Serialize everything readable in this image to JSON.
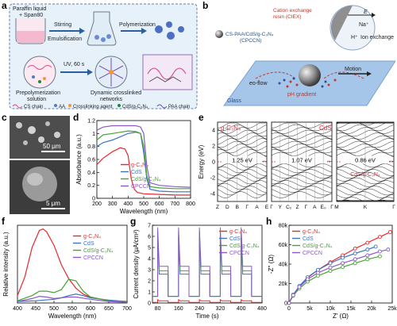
{
  "panel_letters": {
    "a": "a",
    "b": "b",
    "c": "c",
    "d": "d",
    "e": "e",
    "f": "f",
    "g": "g",
    "h": "h"
  },
  "panel_a": {
    "beaker_label_1": "Paraffin liquid",
    "beaker_label_2": "+ Span80",
    "step_1": "Stirring",
    "step_2": "Emulsification",
    "step_3": "Polymerization",
    "uv_label": "UV, 60 s",
    "prepoly_label_1": "Prepolymerization",
    "prepoly_label_2": "solution",
    "network_label_1": "Dynamic crosslinked",
    "network_label_2": "networks",
    "legend": [
      "CS chain",
      "AA",
      "Crosslinking agent",
      "CdS/g-C₃N₄",
      "PAA chain"
    ]
  },
  "panel_b": {
    "ciex_label_1": "Cation exchange",
    "ciex_label_2": "resin (CIEX)",
    "e_label": "E",
    "na_label": "Na⁺",
    "h_label": "H⁺",
    "ion_exchange": "Ion exchange",
    "particle_label_1": "CS-PAA/CdS/g-C₃N₄",
    "particle_label_2": "(CPCCN)",
    "eo_flow": "eo-flow",
    "ph_gradient": "pH gradient",
    "motion": "Motion",
    "glass": "Glass"
  },
  "panel_c": {
    "scale_top": "50 μm",
    "scale_bottom": "5 μm"
  },
  "panel_d": {
    "chart_data": {
      "type": "line",
      "xlabel": "Wavelength (nm)",
      "ylabel": "Absorbance (a.u.)",
      "xlim": [
        200,
        800
      ],
      "ylim": [
        0,
        1.2
      ],
      "xticks": [
        200,
        300,
        400,
        500,
        600,
        700,
        800
      ],
      "yticks": [
        0.0,
        0.2,
        0.4,
        0.6,
        0.8,
        1.0,
        1.2
      ],
      "series": [
        {
          "name": "g-C₃N₄",
          "color": "#e8282d",
          "x": [
            200,
            240,
            300,
            350,
            380,
            400,
            420,
            440,
            460,
            500,
            600,
            700,
            800
          ],
          "y": [
            0.52,
            0.62,
            0.72,
            0.78,
            0.76,
            0.66,
            0.3,
            0.14,
            0.09,
            0.07,
            0.06,
            0.05,
            0.05
          ]
        },
        {
          "name": "CdS",
          "color": "#3a74c5",
          "x": [
            200,
            240,
            300,
            350,
            400,
            450,
            480,
            500,
            520,
            540,
            600,
            700,
            800
          ],
          "y": [
            0.8,
            0.86,
            0.9,
            0.95,
            1.0,
            1.02,
            1.0,
            0.7,
            0.3,
            0.14,
            0.11,
            0.1,
            0.1
          ]
        },
        {
          "name": "CdS/g-C₃N₄",
          "color": "#44a535",
          "x": [
            200,
            240,
            300,
            350,
            400,
            450,
            480,
            500,
            520,
            540,
            600,
            700,
            800
          ],
          "y": [
            0.9,
            0.98,
            1.0,
            1.02,
            1.04,
            1.03,
            1.0,
            0.8,
            0.35,
            0.18,
            0.16,
            0.15,
            0.15
          ]
        },
        {
          "name": "CPCCN",
          "color": "#8b59c8",
          "x": [
            200,
            240,
            300,
            350,
            400,
            450,
            480,
            500,
            520,
            540,
            600,
            700,
            800
          ],
          "y": [
            1.05,
            1.1,
            1.12,
            1.12,
            1.12,
            1.12,
            1.1,
            1.0,
            0.5,
            0.24,
            0.2,
            0.18,
            0.17
          ]
        }
      ]
    }
  },
  "panel_e": {
    "ylabel": "Energy (eV)",
    "yticks": [
      "4",
      "2",
      "0",
      "-2",
      "-4"
    ],
    "gcn_title": "g-C₃N₄",
    "gcn_gap": "1.25 eV",
    "gcn_kpath": [
      "Z",
      "D",
      "B",
      "Γ",
      "A",
      "E"
    ],
    "cds_title": "CdS",
    "cds_gap": "1.07 eV",
    "cds_kpath": [
      "Γ",
      "Y",
      "C₂",
      "Z",
      "Γ",
      "A",
      "E₀",
      "Γ"
    ],
    "comp_title": "CdS/g-C₃N₄",
    "comp_gap": "0.86 eV",
    "comp_kpath": [
      "M",
      "K",
      "Γ"
    ]
  },
  "panel_f": {
    "chart_data": {
      "type": "line",
      "xlabel": "Wavelength (nm)",
      "ylabel": "Relative intensity (a.u.)",
      "xlim": [
        400,
        700
      ],
      "xticks": [
        400,
        450,
        500,
        550,
        600,
        650,
        700
      ],
      "series": [
        {
          "name": "g-C₃N₄",
          "color": "#e8282d",
          "x": [
            400,
            420,
            440,
            460,
            470,
            480,
            500,
            520,
            540,
            560,
            580,
            600,
            650,
            700
          ],
          "y": [
            0.1,
            0.35,
            0.75,
            0.98,
            1.0,
            0.96,
            0.78,
            0.52,
            0.33,
            0.2,
            0.12,
            0.08,
            0.03,
            0.02
          ]
        },
        {
          "name": "CdS",
          "color": "#3a74c5",
          "x": [
            400,
            450,
            500,
            520,
            540,
            560,
            580,
            600,
            650,
            700
          ],
          "y": [
            0.02,
            0.03,
            0.05,
            0.07,
            0.1,
            0.12,
            0.1,
            0.07,
            0.04,
            0.02
          ]
        },
        {
          "name": "CdS/g-C₃N₄",
          "color": "#44a535",
          "x": [
            400,
            440,
            460,
            480,
            500,
            520,
            540,
            560,
            580,
            600,
            650,
            700
          ],
          "y": [
            0.03,
            0.1,
            0.16,
            0.16,
            0.14,
            0.18,
            0.32,
            0.3,
            0.16,
            0.08,
            0.03,
            0.02
          ]
        },
        {
          "name": "CPCCN",
          "color": "#8b59c8",
          "x": [
            400,
            440,
            460,
            480,
            500,
            540,
            560,
            600,
            650,
            700
          ],
          "y": [
            0.02,
            0.06,
            0.09,
            0.08,
            0.06,
            0.08,
            0.08,
            0.05,
            0.02,
            0.01
          ]
        }
      ]
    }
  },
  "panel_g": {
    "chart_data": {
      "type": "line",
      "xlabel": "Time (s)",
      "ylabel": "Current density (μA/cm²)",
      "xlim": [
        60,
        480
      ],
      "ylim": [
        0,
        7
      ],
      "xticks": [
        80,
        160,
        240,
        320,
        400,
        480
      ],
      "yticks": [
        0,
        1,
        2,
        3,
        4,
        5,
        6,
        7
      ],
      "series": [
        {
          "name": "g-C₃N₄",
          "color": "#e8282d",
          "on": 0.2,
          "off": 0.05,
          "spike": 0.3
        },
        {
          "name": "CdS",
          "color": "#3a74c5",
          "on": 2.6,
          "off": 0.6,
          "spike": 6.0
        },
        {
          "name": "CdS/g-C₃N₄",
          "color": "#44a535",
          "on": 2.9,
          "off": 0.6,
          "spike": 6.5
        },
        {
          "name": "CPCCN",
          "color": "#8b59c8",
          "on": 3.3,
          "off": 0.6,
          "spike": 6.8
        }
      ],
      "on_intervals": [
        [
          80,
          120
        ],
        [
          160,
          200
        ],
        [
          240,
          280
        ],
        [
          320,
          360
        ],
        [
          400,
          440
        ]
      ]
    }
  },
  "panel_h": {
    "chart_data": {
      "type": "scatter",
      "xlabel": "Z' (Ω)",
      "ylabel": "-Z'' (Ω)",
      "xlim": [
        0,
        25000
      ],
      "ylim": [
        0,
        80000
      ],
      "xticks": [
        0,
        5000,
        10000,
        15000,
        20000,
        25000
      ],
      "xticklabels": [
        "0",
        "5k",
        "10k",
        "15k",
        "20k",
        "25k"
      ],
      "yticks": [
        0,
        20000,
        40000,
        60000,
        80000
      ],
      "yticklabels": [
        "0",
        "20k",
        "40k",
        "60k",
        "80k"
      ],
      "series": [
        {
          "name": "g-C₃N₄",
          "color": "#e8282d",
          "x": [
            0,
            1000,
            2500,
            4500,
            7000,
            10000,
            13000,
            16000,
            19000,
            22000,
            24500
          ],
          "y": [
            0,
            8000,
            17000,
            26000,
            34000,
            42000,
            49000,
            56000,
            62000,
            68000,
            73000
          ]
        },
        {
          "name": "CdS",
          "color": "#3a74c5",
          "x": [
            0,
            1000,
            2500,
            4500,
            7000,
            10000,
            13000,
            16000,
            19000,
            21000
          ],
          "y": [
            0,
            8500,
            17500,
            26500,
            34000,
            41000,
            46500,
            51000,
            55000,
            58000
          ]
        },
        {
          "name": "CdS/g-C₃N₄",
          "color": "#44a535",
          "x": [
            0,
            1000,
            2500,
            4500,
            7000,
            10000,
            13000,
            16000,
            19000,
            22000
          ],
          "y": [
            0,
            7500,
            15000,
            22000,
            28000,
            33000,
            37000,
            41000,
            45000,
            48000
          ]
        },
        {
          "name": "CPCCN",
          "color": "#8b59c8",
          "x": [
            0,
            1000,
            2500,
            4500,
            7000,
            10000,
            13000,
            16000,
            19000,
            22000,
            24000
          ],
          "y": [
            0,
            8000,
            16500,
            24500,
            31000,
            36500,
            41000,
            45000,
            49000,
            53000,
            55000
          ]
        }
      ]
    }
  }
}
